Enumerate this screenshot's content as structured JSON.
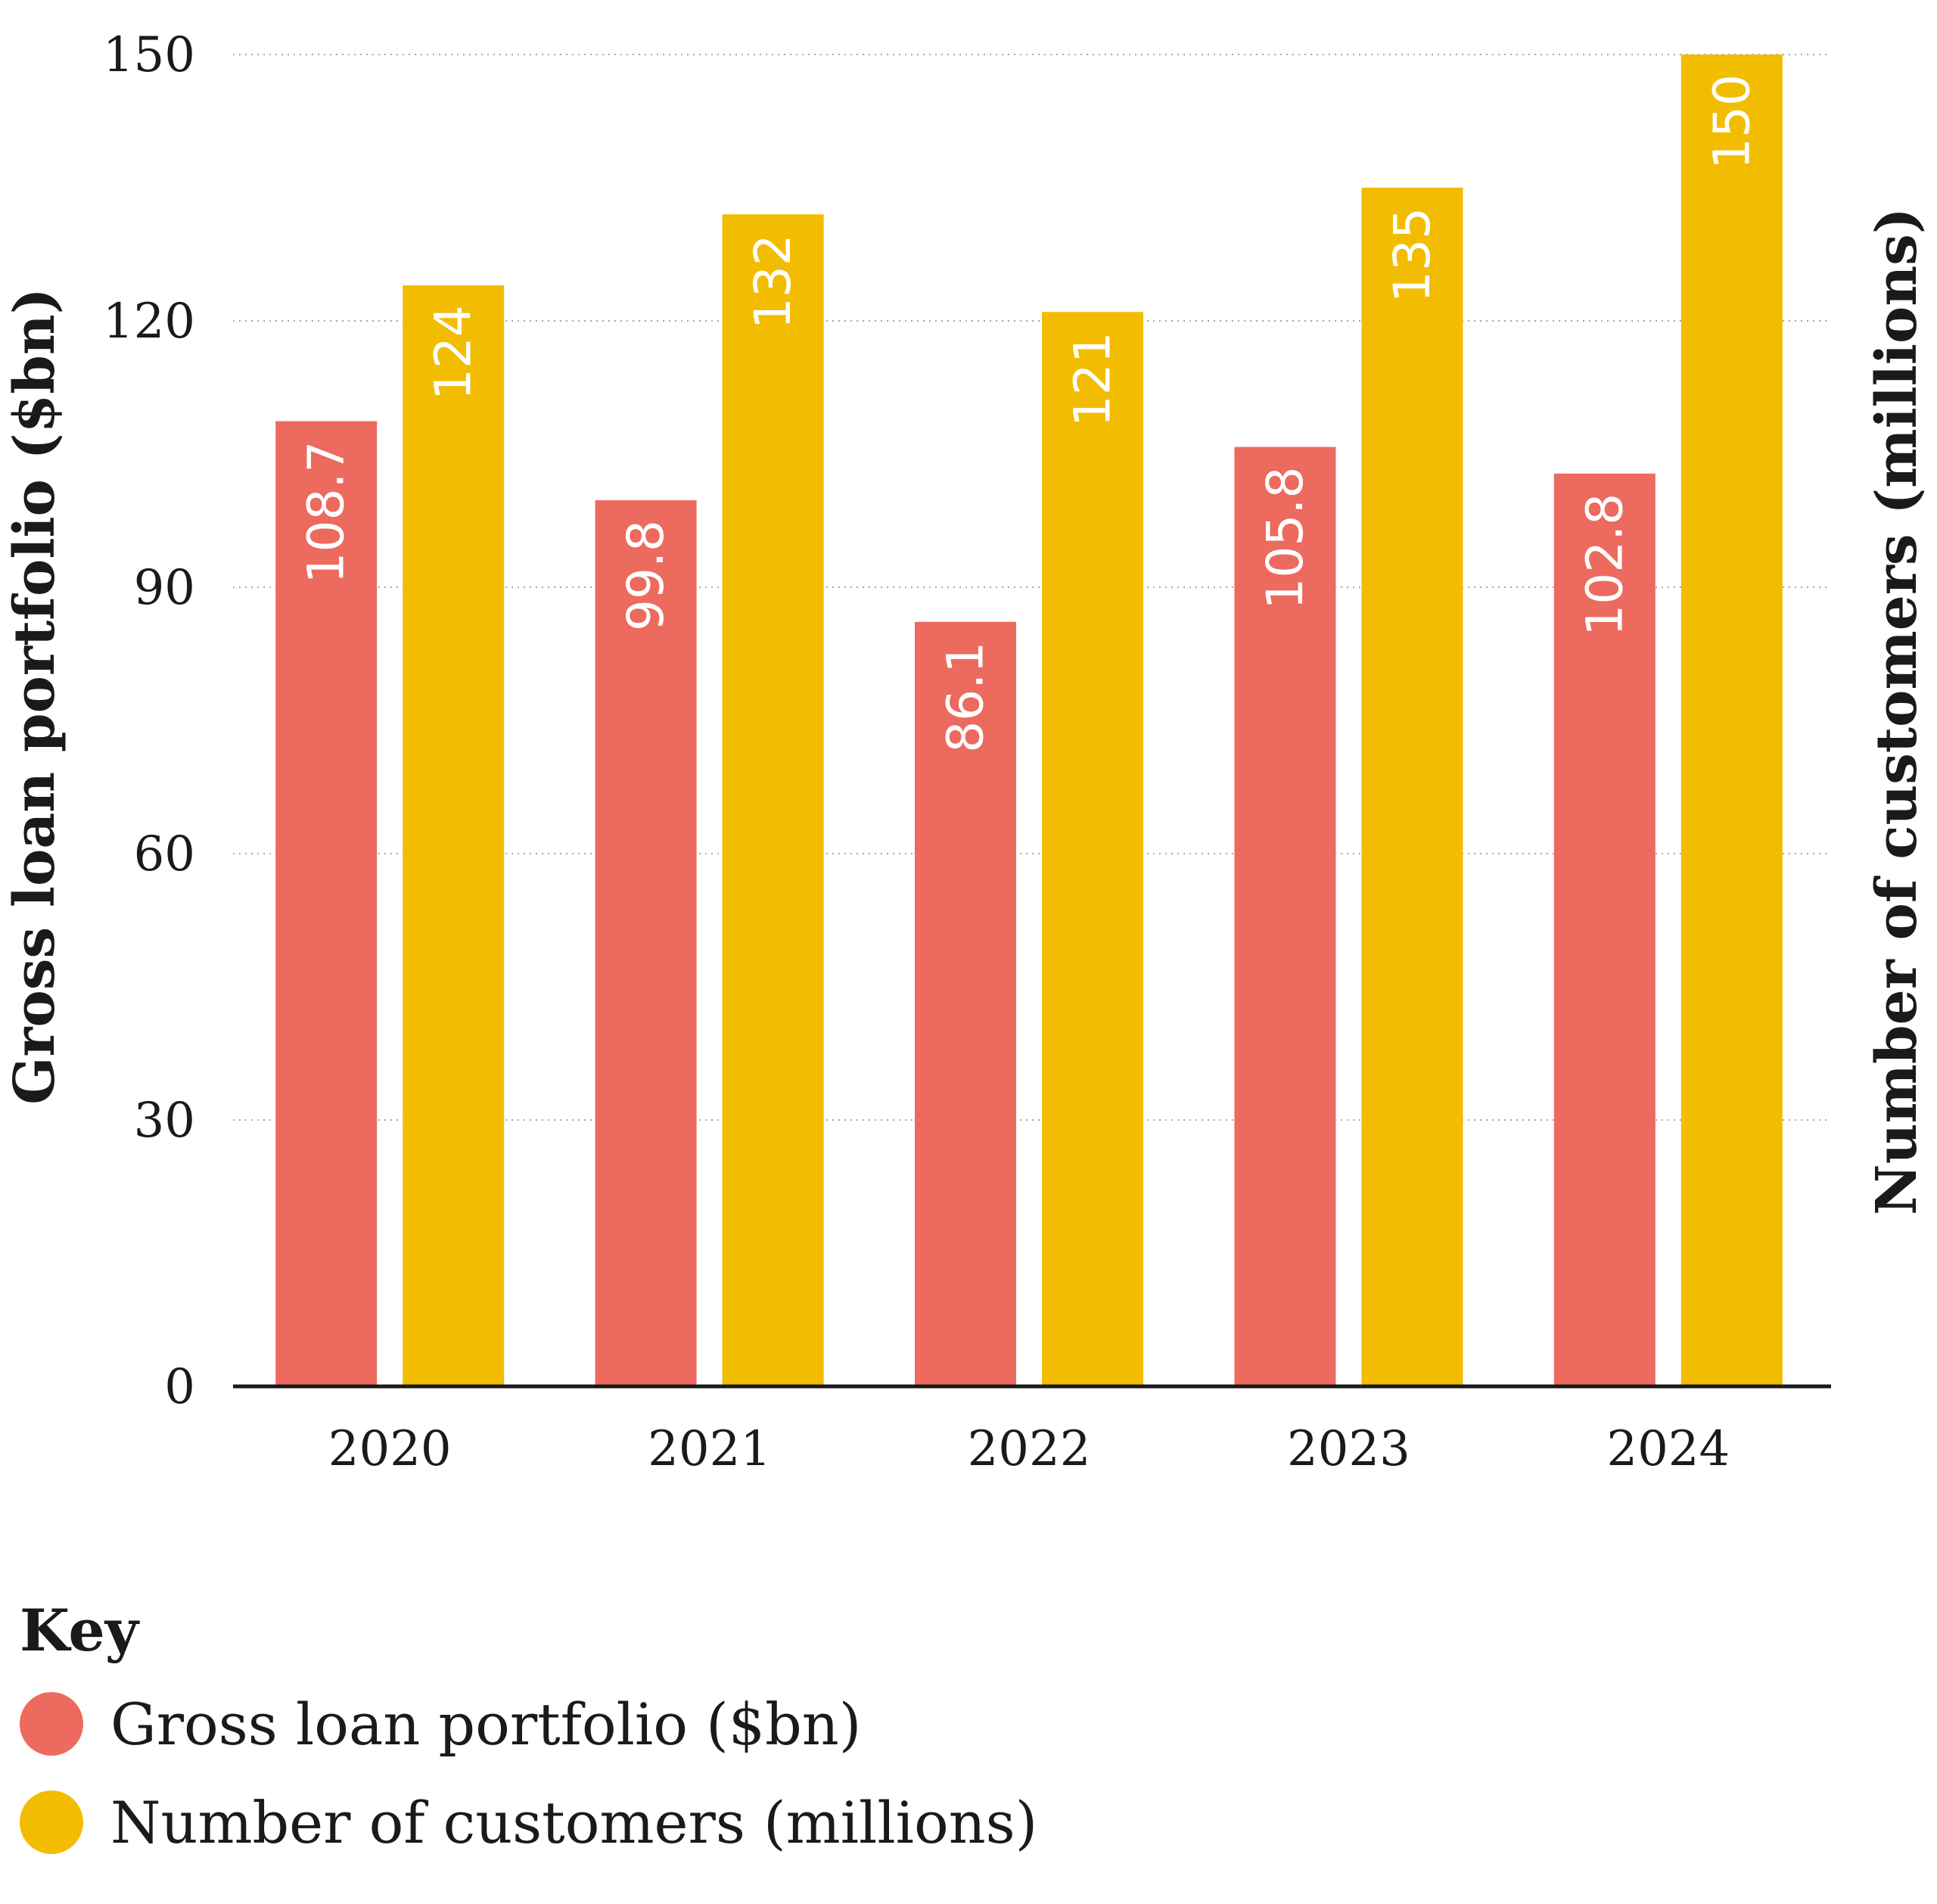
{
  "chart_data": {
    "type": "bar",
    "categories": [
      "2020",
      "2021",
      "2022",
      "2023",
      "2024"
    ],
    "series": [
      {
        "name": "Gross loan portfolio ($bn)",
        "values": [
          108.7,
          99.8,
          86.1,
          105.8,
          102.8
        ],
        "color": "#ec6a5e",
        "labels": [
          "108.7",
          "99.8",
          "86.1",
          "105.8",
          "102.8"
        ]
      },
      {
        "name": "Number of customers (millions)",
        "values": [
          124,
          132,
          121,
          135,
          150
        ],
        "color": "#f2bd00",
        "labels": [
          "124",
          "132",
          "121",
          "135",
          "150"
        ]
      }
    ],
    "ylim": [
      0,
      150
    ],
    "yticks": [
      "0",
      "30",
      "60",
      "90",
      "120",
      "150"
    ],
    "ylabel_left": "Gross loan portfolio ($bn)",
    "ylabel_right": "Number of customers (millions)",
    "grid": true,
    "legend_placement": "bottom-left"
  },
  "legend": {
    "title": "Key",
    "items": [
      {
        "label": "Gross loan portfolio ($bn)",
        "color": "#ec6a5e"
      },
      {
        "label": "Number of customers (millions)",
        "color": "#f2bd00"
      }
    ]
  }
}
